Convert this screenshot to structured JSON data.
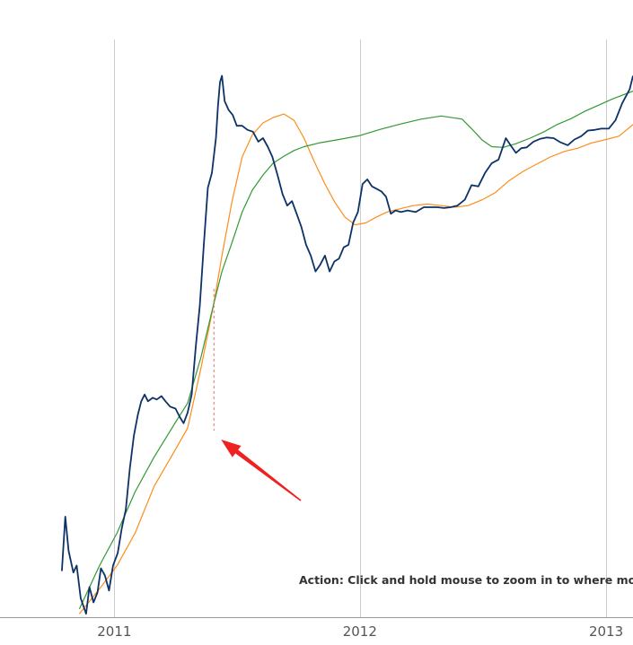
{
  "chart_data": {
    "type": "line",
    "xlabel": "",
    "ylabel": "",
    "scale": "log",
    "grid": "vertical lines at year boundaries",
    "xlim": [
      "2010-07-15",
      "2013-02-10"
    ],
    "ylim_log10": [
      -1.5,
      1.63
    ],
    "x_ticks": [
      "2011",
      "2012",
      "2013"
    ],
    "x_tick_dates": [
      "2011-01-01",
      "2012-01-01",
      "2013-01-01"
    ],
    "annotation_text": "Action: Click and hold mouse to zoom in to where mov",
    "annotation_marker": {
      "type": "arrow",
      "color": "#ee2222",
      "points_to": "2011-05-29"
    },
    "highlight_date": "2011-05-29",
    "series": [
      {
        "color": "#0d3266",
        "x": [
          "2010-10-15",
          "2010-10-20",
          "2010-10-25",
          "2010-11-01",
          "2010-11-06",
          "2010-11-12",
          "2010-11-20",
          "2010-11-25",
          "2010-12-01",
          "2010-12-07",
          "2010-12-12",
          "2010-12-18",
          "2010-12-24",
          "2010-12-30",
          "2011-01-06",
          "2011-01-12",
          "2011-01-18",
          "2011-01-24",
          "2011-01-30",
          "2011-02-05",
          "2011-02-10",
          "2011-02-15",
          "2011-02-20",
          "2011-02-27",
          "2011-03-05",
          "2011-03-12",
          "2011-03-18",
          "2011-03-25",
          "2011-04-02",
          "2011-04-08",
          "2011-04-14",
          "2011-04-20",
          "2011-04-26",
          "2011-05-02",
          "2011-05-08",
          "2011-05-14",
          "2011-05-20",
          "2011-05-26",
          "2011-06-01",
          "2011-06-04",
          "2011-06-07",
          "2011-06-10",
          "2011-06-14",
          "2011-06-20",
          "2011-06-26",
          "2011-07-02",
          "2011-07-10",
          "2011-07-18",
          "2011-07-26",
          "2011-08-03",
          "2011-08-10",
          "2011-08-17",
          "2011-08-24",
          "2011-09-01",
          "2011-09-08",
          "2011-09-15",
          "2011-09-22",
          "2011-09-29",
          "2011-10-06",
          "2011-10-13",
          "2011-10-20",
          "2011-10-27",
          "2011-11-03",
          "2011-11-10",
          "2011-11-17",
          "2011-11-24",
          "2011-12-01",
          "2011-12-08",
          "2011-12-15",
          "2011-12-22",
          "2011-12-29",
          "2012-01-05",
          "2012-01-12",
          "2012-01-19",
          "2012-01-26",
          "2012-02-02",
          "2012-02-09",
          "2012-02-16",
          "2012-02-23",
          "2012-03-02",
          "2012-03-12",
          "2012-03-24",
          "2012-04-05",
          "2012-04-15",
          "2012-04-25",
          "2012-05-05",
          "2012-05-15",
          "2012-05-25",
          "2012-06-05",
          "2012-06-15",
          "2012-06-25",
          "2012-07-05",
          "2012-07-15",
          "2012-07-25",
          "2012-08-05",
          "2012-08-12",
          "2012-08-20",
          "2012-08-28",
          "2012-09-05",
          "2012-09-15",
          "2012-09-25",
          "2012-10-05",
          "2012-10-15",
          "2012-10-25",
          "2012-11-05",
          "2012-11-15",
          "2012-11-25",
          "2012-12-05",
          "2012-12-15",
          "2012-12-25",
          "2013-01-05",
          "2013-01-15",
          "2013-01-25",
          "2013-02-05",
          "2013-02-10"
        ],
        "y": [
          0.056,
          0.11,
          0.072,
          0.055,
          0.06,
          0.04,
          0.033,
          0.046,
          0.038,
          0.043,
          0.058,
          0.053,
          0.044,
          0.06,
          0.07,
          0.095,
          0.12,
          0.2,
          0.3,
          0.39,
          0.46,
          0.5,
          0.46,
          0.48,
          0.47,
          0.49,
          0.46,
          0.43,
          0.42,
          0.38,
          0.35,
          0.4,
          0.5,
          0.9,
          1.5,
          3.2,
          6.5,
          7.8,
          12,
          17.7,
          24,
          26,
          19,
          17,
          16,
          14,
          14,
          13.3,
          13,
          11.5,
          12,
          10.8,
          9.5,
          7.5,
          6,
          5.2,
          5.5,
          4.7,
          4,
          3.2,
          2.8,
          2.3,
          2.5,
          2.8,
          2.3,
          2.6,
          2.7,
          3.1,
          3.2,
          4.2,
          4.8,
          6.8,
          7.2,
          6.6,
          6.4,
          6.2,
          5.8,
          4.7,
          4.9,
          4.8,
          4.9,
          4.8,
          5.1,
          5.1,
          5.1,
          5.05,
          5.1,
          5.2,
          5.6,
          6.7,
          6.6,
          7.8,
          8.8,
          9.2,
          12.0,
          11.0,
          10.0,
          10.6,
          10.7,
          11.5,
          11.9,
          12.1,
          12.0,
          11.4,
          11.0,
          11.8,
          12.3,
          13.2,
          13.3,
          13.5,
          13.5,
          15.0,
          18.5,
          22.0,
          26.0
        ]
      },
      {
        "color": "#ff8c1a",
        "x": [
          "2010-11-10",
          "2010-12-10",
          "2011-01-05",
          "2011-02-01",
          "2011-03-01",
          "2011-04-01",
          "2011-04-20",
          "2011-05-10",
          "2011-05-29",
          "2011-06-10",
          "2011-06-25",
          "2011-07-10",
          "2011-07-25",
          "2011-08-10",
          "2011-08-25",
          "2011-09-10",
          "2011-09-25",
          "2011-10-10",
          "2011-10-25",
          "2011-11-10",
          "2011-11-25",
          "2011-12-10",
          "2011-12-25",
          "2012-01-10",
          "2012-01-25",
          "2012-02-10",
          "2012-03-01",
          "2012-03-20",
          "2012-04-10",
          "2012-05-01",
          "2012-05-20",
          "2012-06-10",
          "2012-07-01",
          "2012-07-20",
          "2012-08-10",
          "2012-09-01",
          "2012-09-20",
          "2012-10-10",
          "2012-11-01",
          "2012-11-20",
          "2012-12-10",
          "2013-01-01",
          "2013-01-20",
          "2013-02-10"
        ],
        "y": [
          0.033,
          0.045,
          0.06,
          0.09,
          0.16,
          0.25,
          0.33,
          0.7,
          1.55,
          2.8,
          5.5,
          9.5,
          12.5,
          14.5,
          15.5,
          16.2,
          15.0,
          12.0,
          9.0,
          6.8,
          5.4,
          4.5,
          4.1,
          4.2,
          4.5,
          4.8,
          5.0,
          5.2,
          5.3,
          5.2,
          5.1,
          5.2,
          5.6,
          6.1,
          7.1,
          8.0,
          8.7,
          9.5,
          10.2,
          10.6,
          11.3,
          11.8,
          12.3,
          14.2
        ]
      },
      {
        "color": "#339933",
        "x": [
          "2010-11-10",
          "2010-12-10",
          "2011-01-05",
          "2011-02-01",
          "2011-03-01",
          "2011-04-01",
          "2011-04-20",
          "2011-05-10",
          "2011-05-29",
          "2011-06-10",
          "2011-06-25",
          "2011-07-10",
          "2011-07-25",
          "2011-08-10",
          "2011-08-25",
          "2011-09-10",
          "2011-09-25",
          "2011-10-10",
          "2011-11-01",
          "2011-12-01",
          "2012-01-01",
          "2012-02-01",
          "2012-03-01",
          "2012-04-01",
          "2012-05-01",
          "2012-06-01",
          "2012-06-15",
          "2012-07-01",
          "2012-07-15",
          "2012-08-01",
          "2012-08-20",
          "2012-09-10",
          "2012-10-01",
          "2012-10-20",
          "2012-11-10",
          "2012-12-01",
          "2012-12-20",
          "2013-01-10",
          "2013-02-10"
        ],
        "y": [
          0.035,
          0.06,
          0.09,
          0.15,
          0.23,
          0.35,
          0.45,
          0.8,
          1.55,
          2.3,
          3.3,
          4.8,
          6.3,
          7.6,
          8.8,
          9.6,
          10.3,
          10.8,
          11.3,
          11.8,
          12.4,
          13.4,
          14.3,
          15.2,
          15.8,
          15.2,
          13.5,
          11.7,
          10.8,
          10.7,
          11.2,
          12.0,
          13.0,
          14.2,
          15.3,
          16.8,
          18.0,
          19.5,
          21.5
        ]
      }
    ]
  }
}
